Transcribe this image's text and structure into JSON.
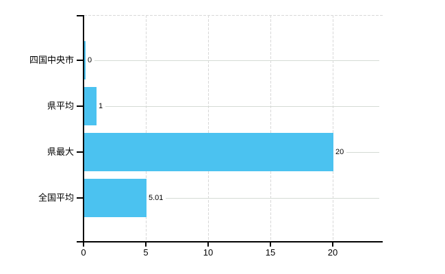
{
  "chart_data": {
    "type": "bar",
    "orientation": "horizontal",
    "title": "",
    "categories": [
      "四国中央市",
      "県平均",
      "県最大",
      "全国平均"
    ],
    "values": [
      0,
      1,
      20,
      5.01
    ],
    "value_labels": [
      "0",
      "1",
      "20",
      "5.01"
    ],
    "x_ticks": [
      0,
      5,
      10,
      15,
      20
    ],
    "x_tick_labels": [
      "0",
      "5",
      "10",
      "15",
      "20"
    ],
    "xlim": [
      0,
      24
    ],
    "ylabel": "",
    "xlabel": "",
    "legend_position": "none",
    "grid": "vertical-dashed",
    "colors": {
      "bar": "#4BC2F0",
      "axis": "#000000",
      "vertical_grid": "#D8D8D8",
      "top_border": "#D8D8D8",
      "category_line": "#D4DAD4",
      "text": "#000000",
      "background": "#FFFFFF"
    }
  }
}
